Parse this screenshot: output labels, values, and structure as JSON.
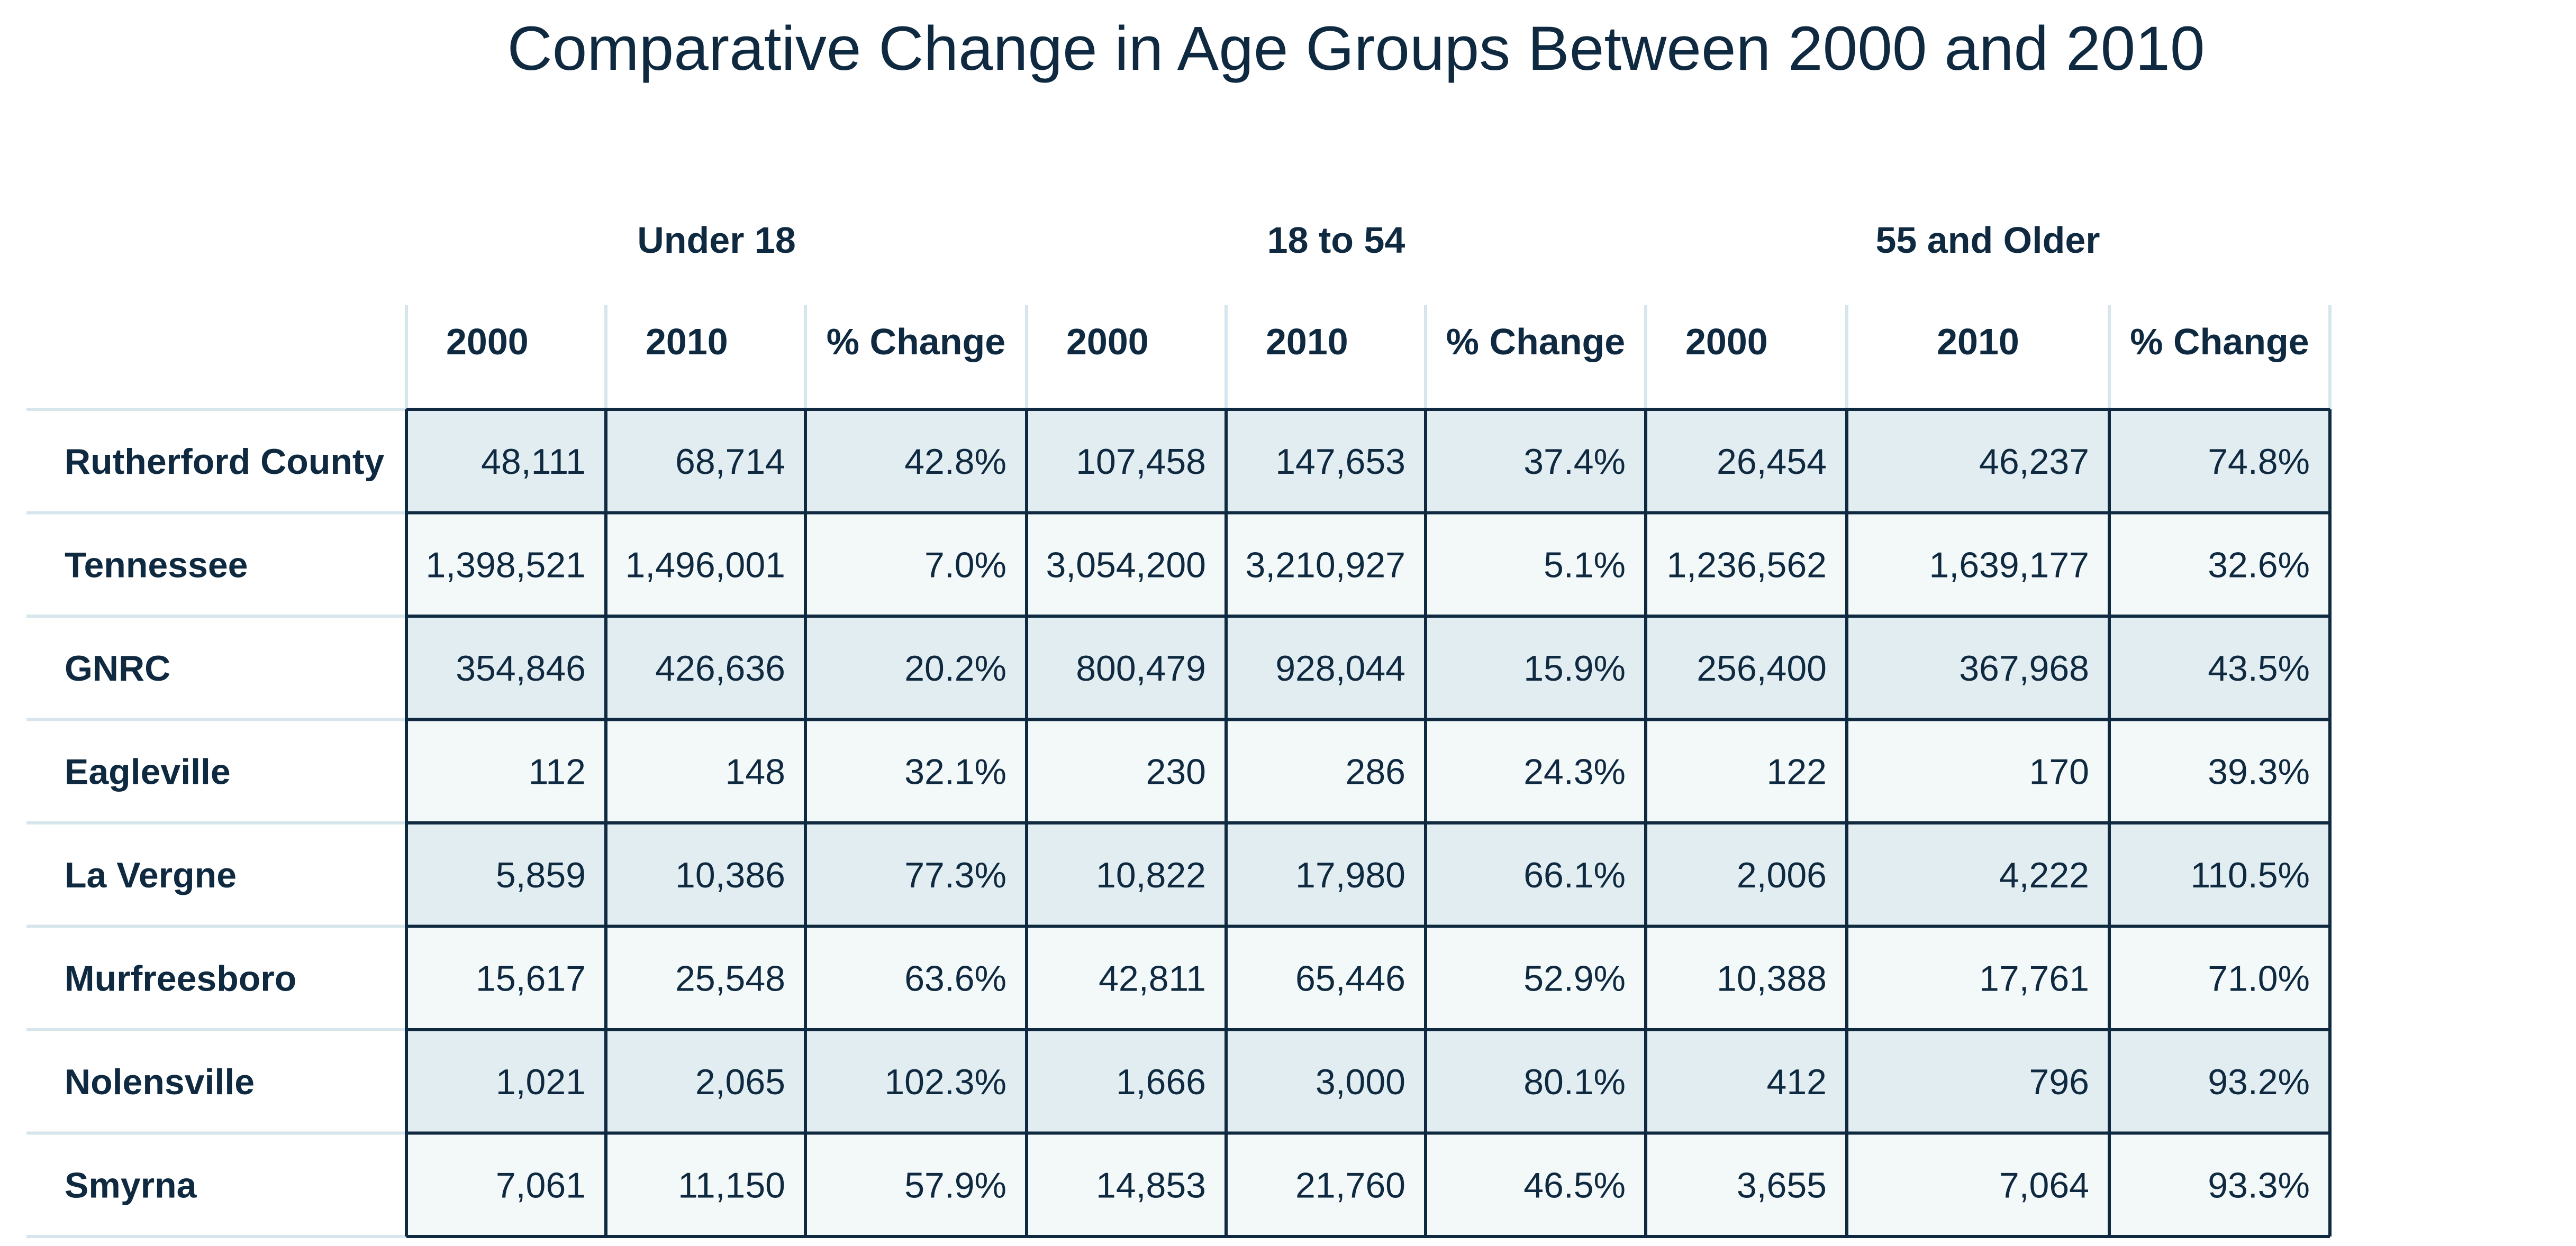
{
  "chart_data": {
    "type": "table",
    "title": "Comparative Change in Age Groups Between 2000 and 2010",
    "groups": [
      "Under 18",
      "18 to 54",
      "55 and Older"
    ],
    "columns": [
      "2000",
      "2010",
      "% Change",
      "2000",
      "2010",
      "% Change",
      "2000",
      "2010",
      "% Change"
    ],
    "rows": [
      {
        "label": "Rutherford County",
        "values": [
          "48,111",
          "68,714",
          "42.8%",
          "107,458",
          "147,653",
          "37.4%",
          "26,454",
          "46,237",
          "74.8%"
        ]
      },
      {
        "label": "Tennessee",
        "values": [
          "1,398,521",
          "1,496,001",
          "7.0%",
          "3,054,200",
          "3,210,927",
          "5.1%",
          "1,236,562",
          "1,639,177",
          "32.6%"
        ]
      },
      {
        "label": "GNRC",
        "values": [
          "354,846",
          "426,636",
          "20.2%",
          "800,479",
          "928,044",
          "15.9%",
          "256,400",
          "367,968",
          "43.5%"
        ]
      },
      {
        "label": "Eagleville",
        "values": [
          "112",
          "148",
          "32.1%",
          "230",
          "286",
          "24.3%",
          "122",
          "170",
          "39.3%"
        ]
      },
      {
        "label": "La Vergne",
        "values": [
          "5,859",
          "10,386",
          "77.3%",
          "10,822",
          "17,980",
          "66.1%",
          "2,006",
          "4,222",
          "110.5%"
        ]
      },
      {
        "label": "Murfreesboro",
        "values": [
          "15,617",
          "25,548",
          "63.6%",
          "42,811",
          "65,446",
          "52.9%",
          "10,388",
          "17,761",
          "71.0%"
        ]
      },
      {
        "label": "Nolensville",
        "values": [
          "1,021",
          "2,065",
          "102.3%",
          "1,666",
          "3,000",
          "80.1%",
          "412",
          "796",
          "93.2%"
        ]
      },
      {
        "label": "Smyrna",
        "values": [
          "7,061",
          "11,150",
          "57.9%",
          "14,853",
          "21,760",
          "46.5%",
          "3,655",
          "7,064",
          "93.3%"
        ]
      }
    ]
  },
  "colors": {
    "text": "#0f2a40",
    "border": "#0f2a40",
    "row_band_dark": "#e1edf1",
    "row_band_light": "#f3f8f9",
    "separator": "#d6e6ec"
  }
}
